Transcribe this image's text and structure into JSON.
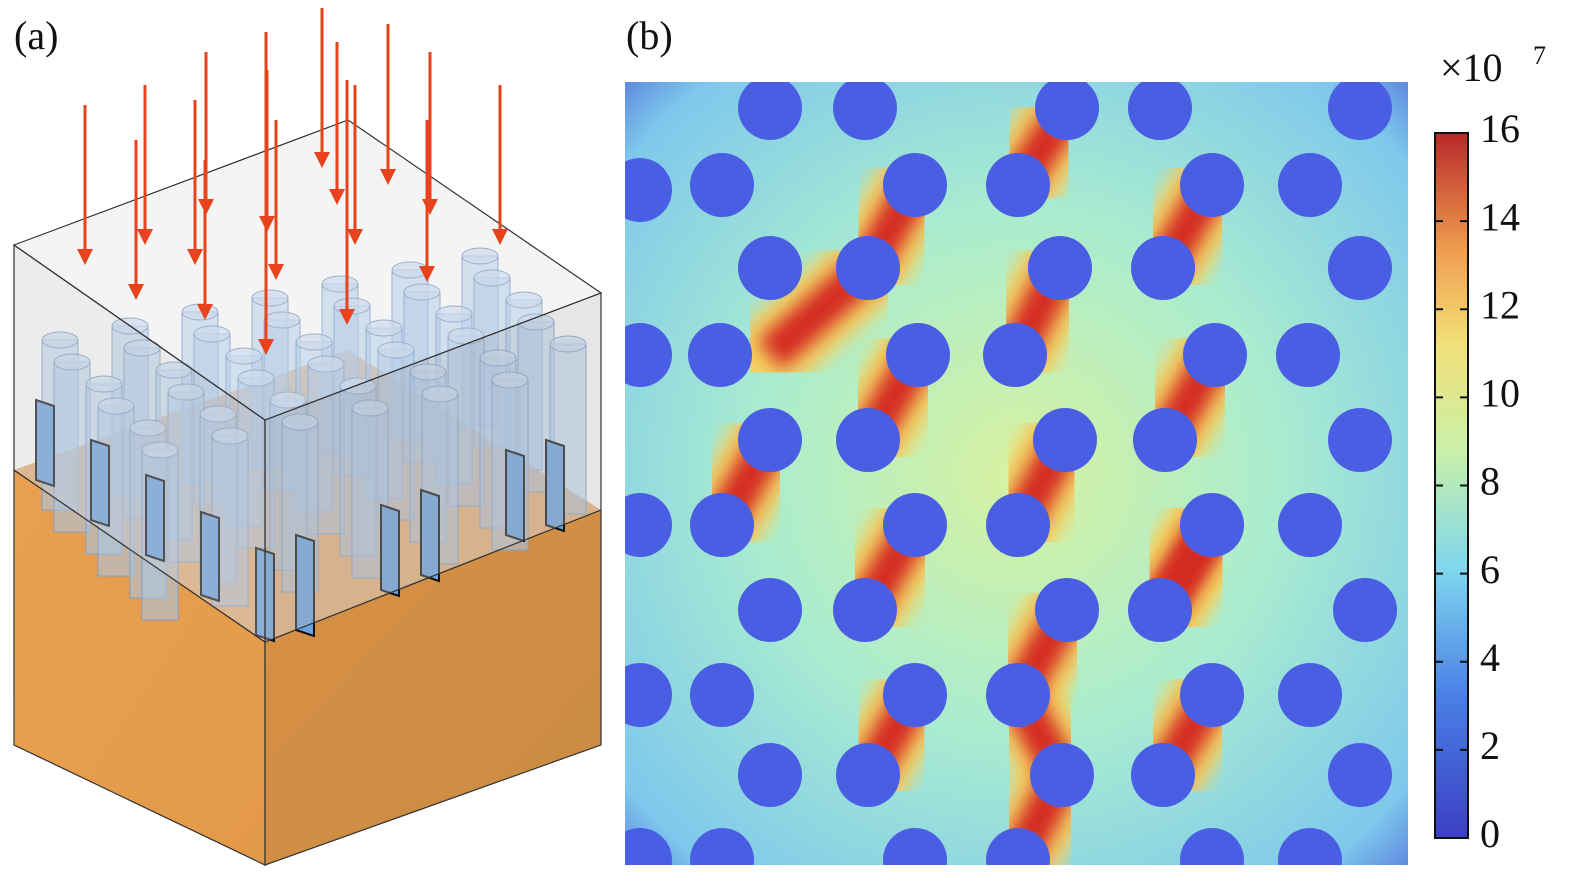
{
  "panels": [
    {
      "label": "(a)"
    },
    {
      "label": "(b)"
    }
  ],
  "colorbar": {
    "multiplier": "×10",
    "exponent": "7",
    "lim": [
      0,
      16
    ],
    "ticks": [
      0,
      2,
      4,
      6,
      8,
      10,
      12,
      14,
      16
    ]
  }
}
